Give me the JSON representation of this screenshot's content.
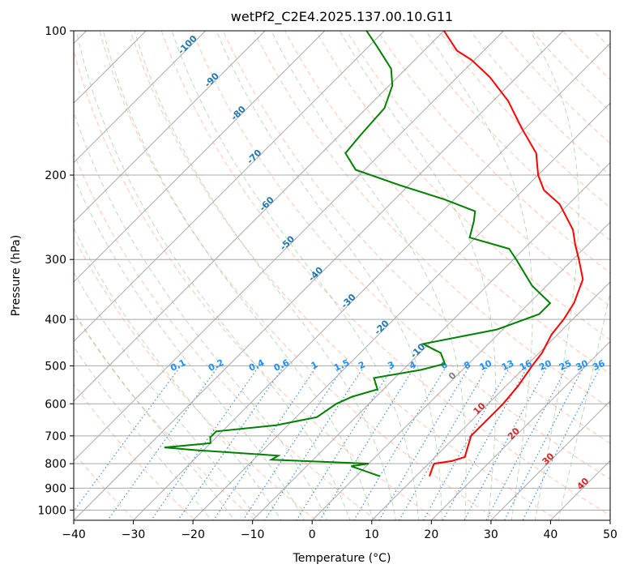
{
  "chart_data": {
    "type": "line",
    "chart_kind": "Skew-T log-P diagram",
    "title": "wetPf2_C2E4.2025.137.00.10.G11",
    "xlabel": "Temperature (°C)",
    "ylabel": "Pressure (hPa)",
    "xlim": [
      -40,
      50
    ],
    "ylim": [
      1050,
      100
    ],
    "yscale": "log",
    "x_ticks": [
      "−40",
      "−30",
      "−20",
      "−10",
      "0",
      "10",
      "20",
      "30",
      "40",
      "50"
    ],
    "x_tick_values": [
      -40,
      -30,
      -20,
      -10,
      0,
      10,
      20,
      30,
      40,
      50
    ],
    "y_ticks": [
      "1000",
      "900",
      "800",
      "700",
      "600",
      "500",
      "400",
      "300",
      "200",
      "100"
    ],
    "y_tick_values": [
      1000,
      900,
      800,
      700,
      600,
      500,
      400,
      300,
      200,
      100
    ],
    "grid": true,
    "series": [
      {
        "role": "temperature",
        "color": "#ff0000",
        "points": [
          [
            850,
            12.3
          ],
          [
            810,
            11.2
          ],
          [
            800,
            11.0
          ],
          [
            790,
            13.5
          ],
          [
            775,
            15.0
          ],
          [
            700,
            12.5
          ],
          [
            650,
            12.5
          ],
          [
            600,
            12.5
          ],
          [
            550,
            12.0
          ],
          [
            500,
            11.0
          ],
          [
            470,
            10.5
          ],
          [
            430,
            9.0
          ],
          [
            400,
            8.5
          ],
          [
            370,
            7.5
          ],
          [
            330,
            5.0
          ],
          [
            300,
            1.0
          ],
          [
            280,
            -2.0
          ],
          [
            260,
            -5.0
          ],
          [
            230,
            -11.5
          ],
          [
            215,
            -16.5
          ],
          [
            200,
            -20.0
          ],
          [
            180,
            -24.0
          ],
          [
            160,
            -30.5
          ],
          [
            140,
            -37.5
          ],
          [
            125,
            -44.5
          ],
          [
            115,
            -50.5
          ],
          [
            110,
            -54.5
          ],
          [
            100,
            -60.0
          ]
        ]
      },
      {
        "role": "dewpoint",
        "color": "#008000",
        "points": [
          [
            850,
            4.0
          ],
          [
            810,
            -2.5
          ],
          [
            800,
            0.0
          ],
          [
            785,
            -17.0
          ],
          [
            770,
            -16.5
          ],
          [
            750,
            -31.0
          ],
          [
            740,
            -37.0
          ],
          [
            725,
            -30.0
          ],
          [
            705,
            -31.0
          ],
          [
            685,
            -31.0
          ],
          [
            665,
            -22.0
          ],
          [
            640,
            -16.5
          ],
          [
            600,
            -15.5
          ],
          [
            580,
            -14.0
          ],
          [
            560,
            -11.0
          ],
          [
            530,
            -13.5
          ],
          [
            510,
            -7.0
          ],
          [
            495,
            -4.0
          ],
          [
            470,
            -6.5
          ],
          [
            450,
            -11.0
          ],
          [
            420,
            -1.0
          ],
          [
            390,
            3.5
          ],
          [
            370,
            3.5
          ],
          [
            340,
            -2.5
          ],
          [
            300,
            -9.5
          ],
          [
            285,
            -12.5
          ],
          [
            270,
            -21.0
          ],
          [
            250,
            -23.0
          ],
          [
            238,
            -24.5
          ],
          [
            225,
            -31.5
          ],
          [
            210,
            -41.5
          ],
          [
            195,
            -51.5
          ],
          [
            180,
            -56.0
          ],
          [
            165,
            -56.5
          ],
          [
            145,
            -57.0
          ],
          [
            130,
            -59.5
          ],
          [
            120,
            -62.5
          ],
          [
            108,
            -68.5
          ],
          [
            100,
            -73.0
          ]
        ]
      }
    ],
    "background_lines": {
      "isotherms_skewed": true,
      "dry_adiabats": "dashed orange-red",
      "moist_adiabats": "dashed green",
      "mixing_ratio_lines": "dotted blue",
      "mixing_ratio_labels": [
        "0.1",
        "0.2",
        "0.4",
        "0.6",
        "1",
        "1.5",
        "2",
        "3",
        "4",
        "6",
        "8",
        "10",
        "13",
        "16",
        "20",
        "25",
        "30",
        "36"
      ],
      "mixing_ratio_values": [
        0.1,
        0.2,
        0.4,
        0.6,
        1,
        1.5,
        2,
        3,
        4,
        6,
        8,
        10,
        13,
        16,
        20,
        25,
        30,
        36
      ],
      "isotherm_labels_cold": [
        "-100",
        "-90",
        "-80",
        "-70",
        "-60",
        "-50",
        "-40",
        "-30",
        "-20",
        "-10"
      ],
      "isotherm_values_cold": [
        -100,
        -90,
        -80,
        -70,
        -60,
        -50,
        -40,
        -30,
        -20,
        -10
      ],
      "isotherm_labels_warm": [
        "0",
        "10",
        "20",
        "30",
        "40"
      ],
      "isotherm_values_warm": [
        0,
        10,
        20,
        30,
        40
      ]
    },
    "colors": {
      "temperature": "#ff0000",
      "dewpoint": "#008000",
      "isotherm_label_cold": "#1f77b4",
      "isotherm_label_zero": "#808080",
      "isotherm_label_warm": "#d62728",
      "mixing_label": "#1e90ff",
      "dry_adiabat": "#ff7f50",
      "moist_adiabat": "#5aa05a",
      "mixing_line": "#1e78dc",
      "grid": "#a9a9a9"
    }
  }
}
